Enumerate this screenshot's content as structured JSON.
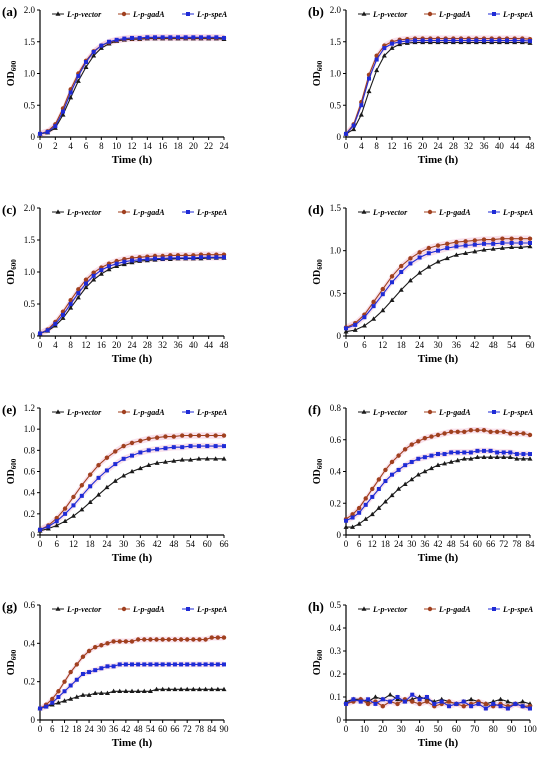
{
  "legend_names": [
    "L-p-vector",
    "L-p-gadA",
    "L-p-speA"
  ],
  "colors": {
    "vector": "#1a1a1a",
    "gadA": "#a0401f",
    "speA": "#1f2bd6",
    "shade": "#f4c8dc"
  },
  "chart_data": [
    {
      "type": "line",
      "label": "(a)",
      "xlabel": "Time (h)",
      "ylabel": "OD600",
      "xlim": [
        0,
        24
      ],
      "ylim": [
        0,
        2.0
      ],
      "xticks": [
        0,
        2,
        4,
        6,
        8,
        10,
        12,
        14,
        16,
        18,
        20,
        22,
        24
      ],
      "yticks": [
        0,
        0.5,
        1.0,
        1.5,
        2.0
      ],
      "yfmt": 1,
      "x": [
        0,
        1,
        2,
        3,
        4,
        5,
        6,
        7,
        8,
        9,
        10,
        11,
        12,
        13,
        14,
        15,
        16,
        17,
        18,
        19,
        20,
        21,
        22,
        23,
        24
      ],
      "series": [
        {
          "name": "L-p-vector",
          "values": [
            0.05,
            0.07,
            0.14,
            0.35,
            0.62,
            0.88,
            1.1,
            1.28,
            1.4,
            1.47,
            1.51,
            1.53,
            1.54,
            1.54,
            1.55,
            1.55,
            1.55,
            1.55,
            1.55,
            1.55,
            1.55,
            1.55,
            1.55,
            1.55,
            1.54
          ]
        },
        {
          "name": "L-p-gadA",
          "values": [
            0.05,
            0.09,
            0.2,
            0.45,
            0.75,
            1.0,
            1.2,
            1.35,
            1.44,
            1.49,
            1.52,
            1.54,
            1.55,
            1.55,
            1.56,
            1.56,
            1.56,
            1.56,
            1.56,
            1.56,
            1.56,
            1.56,
            1.56,
            1.56,
            1.56
          ]
        },
        {
          "name": "L-p-speA",
          "values": [
            0.05,
            0.08,
            0.17,
            0.4,
            0.7,
            0.96,
            1.18,
            1.34,
            1.44,
            1.5,
            1.53,
            1.55,
            1.56,
            1.56,
            1.57,
            1.57,
            1.57,
            1.57,
            1.57,
            1.57,
            1.57,
            1.57,
            1.57,
            1.57,
            1.56
          ]
        }
      ]
    },
    {
      "type": "line",
      "label": "(b)",
      "xlabel": "Time (h)",
      "ylabel": "OD600",
      "xlim": [
        0,
        48
      ],
      "ylim": [
        0,
        2.0
      ],
      "xticks": [
        0,
        4,
        8,
        12,
        16,
        20,
        24,
        28,
        32,
        36,
        40,
        44,
        48
      ],
      "yticks": [
        0,
        0.5,
        1.0,
        1.5,
        2.0
      ],
      "yfmt": 1,
      "x": [
        0,
        2,
        4,
        6,
        8,
        10,
        12,
        14,
        16,
        18,
        20,
        22,
        24,
        26,
        28,
        30,
        32,
        34,
        36,
        38,
        40,
        42,
        44,
        46,
        48
      ],
      "series": [
        {
          "name": "L-p-vector",
          "values": [
            0.05,
            0.12,
            0.35,
            0.72,
            1.05,
            1.28,
            1.4,
            1.46,
            1.48,
            1.49,
            1.49,
            1.49,
            1.49,
            1.49,
            1.49,
            1.49,
            1.49,
            1.49,
            1.49,
            1.49,
            1.49,
            1.49,
            1.49,
            1.49,
            1.48
          ]
        },
        {
          "name": "L-p-gadA",
          "values": [
            0.05,
            0.2,
            0.55,
            0.98,
            1.28,
            1.44,
            1.5,
            1.53,
            1.54,
            1.55,
            1.55,
            1.55,
            1.55,
            1.55,
            1.55,
            1.55,
            1.55,
            1.55,
            1.55,
            1.55,
            1.55,
            1.55,
            1.55,
            1.55,
            1.54
          ]
        },
        {
          "name": "L-p-speA",
          "values": [
            0.05,
            0.18,
            0.5,
            0.92,
            1.22,
            1.4,
            1.47,
            1.5,
            1.51,
            1.52,
            1.52,
            1.52,
            1.52,
            1.52,
            1.52,
            1.52,
            1.52,
            1.52,
            1.52,
            1.52,
            1.52,
            1.52,
            1.52,
            1.52,
            1.51
          ]
        }
      ]
    },
    {
      "type": "line",
      "label": "(c)",
      "xlabel": "Time (h)",
      "ylabel": "OD600",
      "xlim": [
        0,
        48
      ],
      "ylim": [
        0,
        2.0
      ],
      "xticks": [
        0,
        4,
        8,
        12,
        16,
        20,
        24,
        28,
        32,
        36,
        40,
        44,
        48
      ],
      "yticks": [
        0,
        0.5,
        1.0,
        1.5,
        2.0
      ],
      "yfmt": 1,
      "x": [
        0,
        2,
        4,
        6,
        8,
        10,
        12,
        14,
        16,
        18,
        20,
        22,
        24,
        26,
        28,
        30,
        32,
        34,
        36,
        38,
        40,
        42,
        44,
        46,
        48
      ],
      "series": [
        {
          "name": "L-p-vector",
          "values": [
            0.04,
            0.08,
            0.16,
            0.28,
            0.44,
            0.6,
            0.76,
            0.88,
            0.97,
            1.04,
            1.09,
            1.12,
            1.15,
            1.17,
            1.18,
            1.19,
            1.2,
            1.2,
            1.21,
            1.21,
            1.21,
            1.21,
            1.22,
            1.22,
            1.22
          ]
        },
        {
          "name": "L-p-gadA",
          "values": [
            0.04,
            0.1,
            0.22,
            0.38,
            0.56,
            0.73,
            0.88,
            0.99,
            1.07,
            1.13,
            1.17,
            1.2,
            1.22,
            1.23,
            1.24,
            1.25,
            1.25,
            1.26,
            1.26,
            1.26,
            1.26,
            1.27,
            1.27,
            1.27,
            1.27
          ]
        },
        {
          "name": "L-p-speA",
          "values": [
            0.04,
            0.09,
            0.19,
            0.33,
            0.5,
            0.67,
            0.82,
            0.94,
            1.03,
            1.09,
            1.13,
            1.16,
            1.18,
            1.19,
            1.2,
            1.21,
            1.21,
            1.22,
            1.22,
            1.22,
            1.22,
            1.23,
            1.23,
            1.23,
            1.23
          ]
        }
      ]
    },
    {
      "type": "line",
      "label": "(d)",
      "xlabel": "Time (h)",
      "ylabel": "OD600",
      "xlim": [
        0,
        60
      ],
      "ylim": [
        0,
        1.5
      ],
      "xticks": [
        0,
        6,
        12,
        18,
        24,
        30,
        36,
        42,
        48,
        54,
        60
      ],
      "yticks": [
        0,
        0.5,
        1.0,
        1.5
      ],
      "yfmt": 1,
      "x": [
        0,
        3,
        6,
        9,
        12,
        15,
        18,
        21,
        24,
        27,
        30,
        33,
        36,
        39,
        42,
        45,
        48,
        51,
        54,
        57,
        60
      ],
      "series": [
        {
          "name": "L-p-vector",
          "values": [
            0.05,
            0.07,
            0.12,
            0.2,
            0.3,
            0.42,
            0.54,
            0.65,
            0.74,
            0.81,
            0.87,
            0.91,
            0.95,
            0.97,
            0.99,
            1.01,
            1.02,
            1.03,
            1.04,
            1.04,
            1.05
          ]
        },
        {
          "name": "L-p-gadA",
          "values": [
            0.1,
            0.15,
            0.25,
            0.4,
            0.55,
            0.7,
            0.82,
            0.91,
            0.98,
            1.03,
            1.06,
            1.08,
            1.1,
            1.11,
            1.12,
            1.13,
            1.13,
            1.14,
            1.14,
            1.14,
            1.14
          ]
        },
        {
          "name": "L-p-speA",
          "values": [
            0.09,
            0.13,
            0.22,
            0.35,
            0.49,
            0.63,
            0.75,
            0.85,
            0.92,
            0.97,
            1.0,
            1.03,
            1.05,
            1.06,
            1.07,
            1.08,
            1.08,
            1.09,
            1.09,
            1.09,
            1.09
          ]
        }
      ]
    },
    {
      "type": "line",
      "label": "(e)",
      "xlabel": "Time (h)",
      "ylabel": "OD600",
      "xlim": [
        0,
        66
      ],
      "ylim": [
        0,
        1.2
      ],
      "xticks": [
        0,
        6,
        12,
        18,
        24,
        30,
        36,
        42,
        48,
        54,
        60,
        66
      ],
      "yticks": [
        0,
        0.2,
        0.4,
        0.6,
        0.8,
        1.0,
        1.2
      ],
      "yfmt": 1,
      "x": [
        0,
        3,
        6,
        9,
        12,
        15,
        18,
        21,
        24,
        27,
        30,
        33,
        36,
        39,
        42,
        45,
        48,
        51,
        54,
        57,
        60,
        63,
        66
      ],
      "series": [
        {
          "name": "L-p-vector",
          "values": [
            0.04,
            0.06,
            0.09,
            0.13,
            0.18,
            0.24,
            0.31,
            0.38,
            0.45,
            0.51,
            0.56,
            0.6,
            0.63,
            0.66,
            0.68,
            0.69,
            0.7,
            0.71,
            0.71,
            0.72,
            0.72,
            0.72,
            0.72
          ]
        },
        {
          "name": "L-p-gadA",
          "values": [
            0.05,
            0.09,
            0.16,
            0.25,
            0.36,
            0.47,
            0.57,
            0.66,
            0.73,
            0.79,
            0.84,
            0.87,
            0.89,
            0.91,
            0.92,
            0.93,
            0.93,
            0.94,
            0.94,
            0.94,
            0.94,
            0.94,
            0.94
          ]
        },
        {
          "name": "L-p-speA",
          "values": [
            0.05,
            0.08,
            0.13,
            0.2,
            0.28,
            0.37,
            0.46,
            0.54,
            0.61,
            0.67,
            0.72,
            0.75,
            0.78,
            0.8,
            0.81,
            0.82,
            0.83,
            0.83,
            0.84,
            0.84,
            0.84,
            0.84,
            0.84
          ]
        }
      ]
    },
    {
      "type": "line",
      "label": "(f)",
      "xlabel": "Time (h)",
      "ylabel": "OD600",
      "xlim": [
        0,
        84
      ],
      "ylim": [
        0,
        0.8
      ],
      "xticks": [
        0,
        6,
        12,
        18,
        24,
        30,
        36,
        42,
        48,
        54,
        60,
        66,
        72,
        78,
        84
      ],
      "yticks": [
        0,
        0.2,
        0.4,
        0.6,
        0.8
      ],
      "yfmt": 1,
      "x": [
        0,
        3,
        6,
        9,
        12,
        15,
        18,
        21,
        24,
        27,
        30,
        33,
        36,
        39,
        42,
        45,
        48,
        51,
        54,
        57,
        60,
        63,
        66,
        69,
        72,
        75,
        78,
        81,
        84
      ],
      "series": [
        {
          "name": "L-p-vector",
          "values": [
            0.05,
            0.05,
            0.07,
            0.1,
            0.13,
            0.17,
            0.21,
            0.25,
            0.29,
            0.32,
            0.35,
            0.38,
            0.4,
            0.42,
            0.44,
            0.45,
            0.46,
            0.47,
            0.48,
            0.48,
            0.49,
            0.49,
            0.49,
            0.49,
            0.49,
            0.49,
            0.48,
            0.48,
            0.48
          ]
        },
        {
          "name": "L-p-gadA",
          "values": [
            0.1,
            0.13,
            0.17,
            0.23,
            0.29,
            0.35,
            0.41,
            0.46,
            0.5,
            0.54,
            0.57,
            0.59,
            0.61,
            0.62,
            0.63,
            0.64,
            0.65,
            0.65,
            0.65,
            0.66,
            0.66,
            0.66,
            0.65,
            0.65,
            0.65,
            0.64,
            0.64,
            0.64,
            0.63
          ]
        },
        {
          "name": "L-p-speA",
          "values": [
            0.09,
            0.11,
            0.14,
            0.19,
            0.24,
            0.29,
            0.34,
            0.38,
            0.41,
            0.44,
            0.46,
            0.48,
            0.49,
            0.5,
            0.51,
            0.51,
            0.52,
            0.52,
            0.52,
            0.52,
            0.53,
            0.53,
            0.53,
            0.52,
            0.52,
            0.52,
            0.51,
            0.51,
            0.51
          ]
        }
      ]
    },
    {
      "type": "line",
      "label": "(g)",
      "xlabel": "Time (h)",
      "ylabel": "OD600",
      "xlim": [
        0,
        90
      ],
      "ylim": [
        0,
        0.6
      ],
      "xticks": [
        0,
        6,
        12,
        18,
        24,
        30,
        36,
        42,
        48,
        54,
        60,
        66,
        72,
        78,
        84,
        90
      ],
      "yticks": [
        0,
        0.2,
        0.4,
        0.6
      ],
      "yfmt": 1,
      "x": [
        0,
        3,
        6,
        9,
        12,
        15,
        18,
        21,
        24,
        27,
        30,
        33,
        36,
        39,
        42,
        45,
        48,
        51,
        54,
        57,
        60,
        63,
        66,
        69,
        72,
        75,
        78,
        81,
        84,
        87,
        90
      ],
      "series": [
        {
          "name": "L-p-vector",
          "values": [
            0.06,
            0.07,
            0.08,
            0.09,
            0.1,
            0.11,
            0.12,
            0.13,
            0.13,
            0.14,
            0.14,
            0.14,
            0.15,
            0.15,
            0.15,
            0.15,
            0.15,
            0.15,
            0.15,
            0.16,
            0.16,
            0.16,
            0.16,
            0.16,
            0.16,
            0.16,
            0.16,
            0.16,
            0.16,
            0.16,
            0.16
          ]
        },
        {
          "name": "L-p-gadA",
          "values": [
            0.06,
            0.08,
            0.11,
            0.15,
            0.2,
            0.25,
            0.29,
            0.33,
            0.36,
            0.38,
            0.39,
            0.4,
            0.41,
            0.41,
            0.41,
            0.41,
            0.42,
            0.42,
            0.42,
            0.42,
            0.42,
            0.42,
            0.42,
            0.42,
            0.42,
            0.42,
            0.42,
            0.42,
            0.43,
            0.43,
            0.43
          ]
        },
        {
          "name": "L-p-speA",
          "values": [
            0.06,
            0.07,
            0.09,
            0.12,
            0.15,
            0.18,
            0.21,
            0.24,
            0.25,
            0.26,
            0.27,
            0.28,
            0.28,
            0.29,
            0.29,
            0.29,
            0.29,
            0.29,
            0.29,
            0.29,
            0.29,
            0.29,
            0.29,
            0.29,
            0.29,
            0.29,
            0.29,
            0.29,
            0.29,
            0.29,
            0.29
          ]
        }
      ]
    },
    {
      "type": "line",
      "label": "(h)",
      "xlabel": "Time (h)",
      "ylabel": "OD600",
      "xlim": [
        0,
        100
      ],
      "ylim": [
        0,
        0.5
      ],
      "xticks": [
        0,
        10,
        20,
        30,
        40,
        50,
        60,
        70,
        80,
        90,
        100
      ],
      "yticks": [
        0,
        0.1,
        0.2,
        0.3,
        0.4,
        0.5
      ],
      "yfmt": 1,
      "x": [
        0,
        4,
        8,
        12,
        16,
        20,
        24,
        28,
        32,
        36,
        40,
        44,
        48,
        52,
        56,
        60,
        64,
        68,
        72,
        76,
        80,
        84,
        88,
        92,
        96,
        100
      ],
      "series": [
        {
          "name": "L-p-vector",
          "values": [
            0.08,
            0.09,
            0.09,
            0.08,
            0.1,
            0.09,
            0.11,
            0.09,
            0.08,
            0.09,
            0.1,
            0.09,
            0.08,
            0.09,
            0.08,
            0.07,
            0.08,
            0.09,
            0.08,
            0.07,
            0.08,
            0.09,
            0.08,
            0.07,
            0.08,
            0.07
          ]
        },
        {
          "name": "L-p-gadA",
          "values": [
            0.07,
            0.08,
            0.09,
            0.07,
            0.08,
            0.06,
            0.08,
            0.07,
            0.09,
            0.08,
            0.07,
            0.08,
            0.06,
            0.07,
            0.08,
            0.07,
            0.06,
            0.07,
            0.08,
            0.07,
            0.06,
            0.07,
            0.06,
            0.07,
            0.06,
            0.06
          ]
        },
        {
          "name": "L-p-speA",
          "values": [
            0.07,
            0.09,
            0.08,
            0.09,
            0.07,
            0.09,
            0.08,
            0.1,
            0.08,
            0.11,
            0.09,
            0.1,
            0.07,
            0.08,
            0.06,
            0.07,
            0.08,
            0.06,
            0.07,
            0.05,
            0.07,
            0.06,
            0.05,
            0.07,
            0.06,
            0.05
          ]
        }
      ]
    }
  ]
}
